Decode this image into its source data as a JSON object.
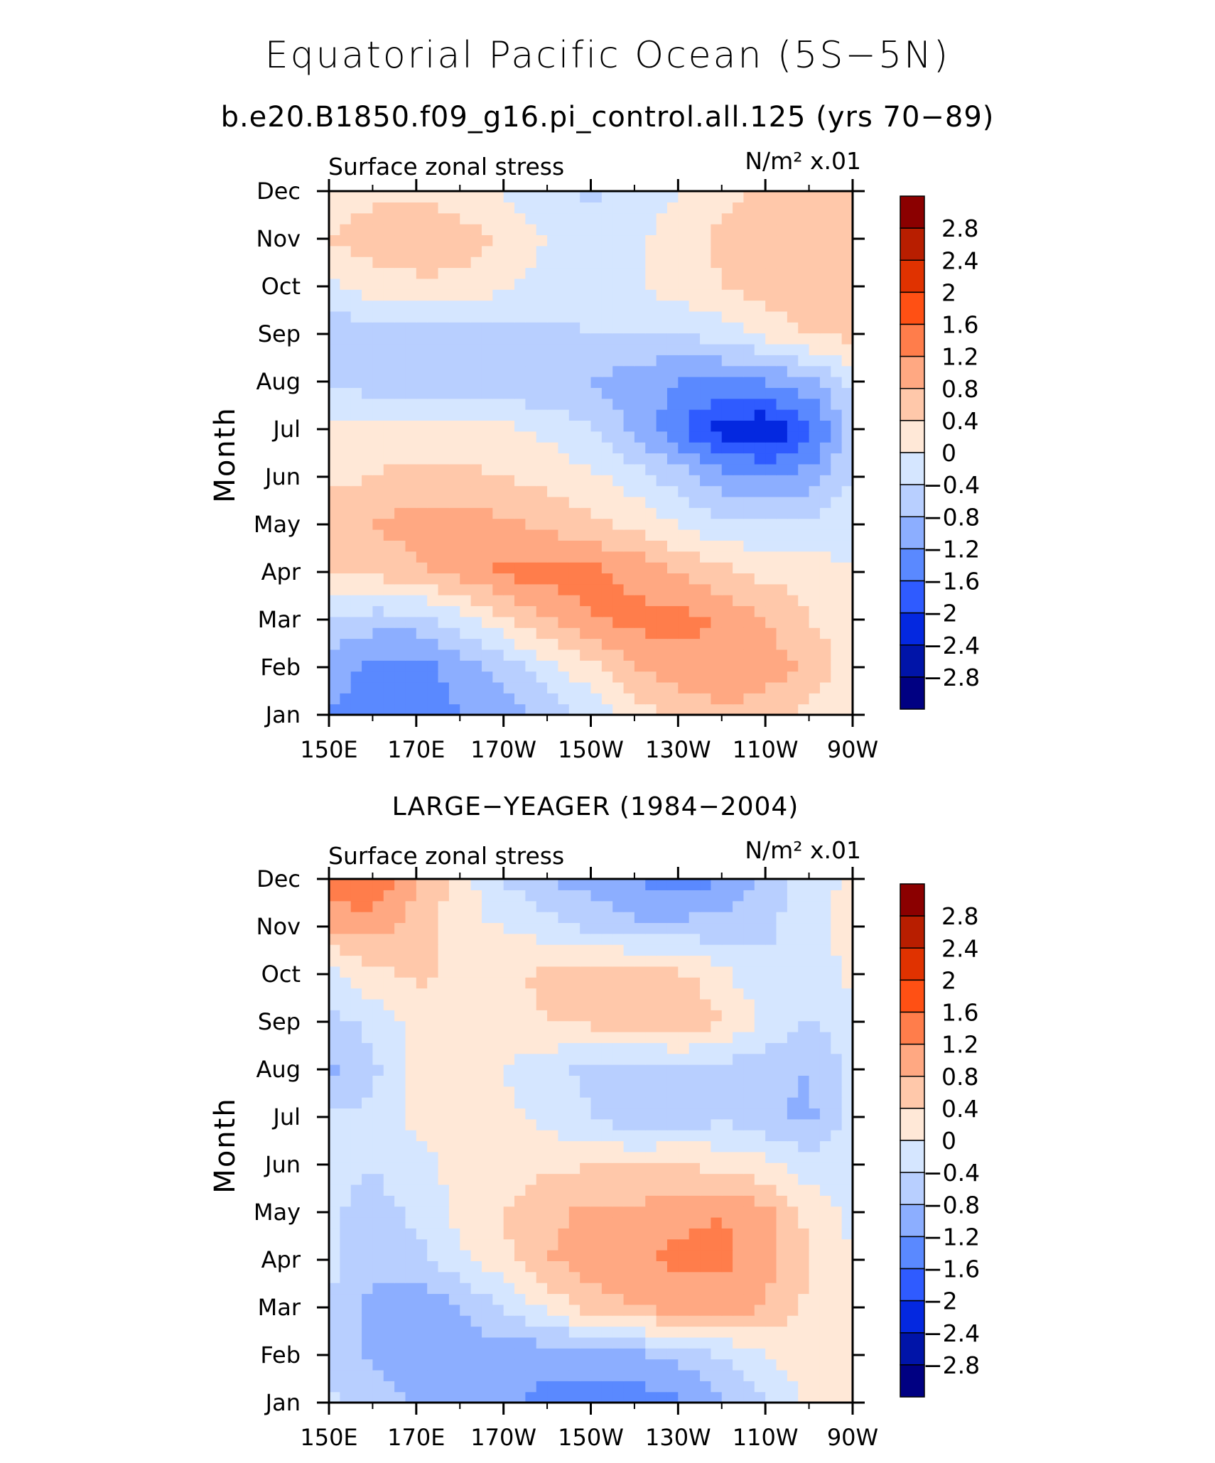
{
  "figure": {
    "title": "Equatorial Pacific Ocean (5S−5N)",
    "subtitle": "b.e20.B1850.f09_g16.pi_control.all.125 (yrs 70−89)"
  },
  "colorbar": {
    "levels": [
      "2.8",
      "2.4",
      "2",
      "1.6",
      "1.2",
      "0.8",
      "0.4",
      "0",
      "−0.4",
      "−0.8",
      "−1.2",
      "−1.6",
      "−2",
      "−2.4",
      "−2.8"
    ],
    "colors": [
      "#8b0000",
      "#b81e00",
      "#e03200",
      "#ff5014",
      "#ff7d4b",
      "#ffa882",
      "#ffc8aa",
      "#ffe8d7",
      "#d5e6ff",
      "#b8cfff",
      "#8caeff",
      "#5a89ff",
      "#2f5bff",
      "#0428e0",
      "#0014a8",
      "#000082"
    ]
  },
  "panels": [
    {
      "title": "",
      "left_label": "Surface zonal stress",
      "right_label": "N/m² x.01",
      "ylabel": "Month"
    },
    {
      "title": "LARGE−YEAGER (1984−2004)",
      "left_label": "Surface zonal stress",
      "right_label": "N/m² x.01",
      "ylabel": "Month"
    }
  ],
  "chart_data": [
    {
      "type": "heatmap",
      "title": "b.e20.B1850.f09_g16.pi_control.all.125 (yrs 70−89)",
      "variable": "Surface zonal stress",
      "units": "N/m² x.01",
      "xlabel": "",
      "ylabel": "Month",
      "x_ticks": [
        "150E",
        "170E",
        "170W",
        "150W",
        "130W",
        "110W",
        "90W"
      ],
      "y_ticks": [
        "Jan",
        "Feb",
        "Mar",
        "Apr",
        "May",
        "Jun",
        "Jul",
        "Aug",
        "Sep",
        "Oct",
        "Nov",
        "Dec"
      ],
      "levels": [
        -2.8,
        -2.4,
        -2,
        -1.6,
        -1.2,
        -0.8,
        -0.4,
        0,
        0.4,
        0.8,
        1.2,
        1.6,
        2,
        2.4,
        2.8
      ],
      "x": [
        150,
        160,
        170,
        180,
        190,
        200,
        210,
        220,
        230,
        240,
        250,
        260,
        270
      ],
      "y": [
        "Jan",
        "Feb",
        "Mar",
        "Apr",
        "May",
        "Jun",
        "Jul",
        "Aug",
        "Sep",
        "Oct",
        "Nov",
        "Dec"
      ],
      "z": [
        [
          -1.2,
          -1.4,
          -1.6,
          -1.2,
          -1.0,
          -0.6,
          -0.3,
          0.2,
          0.5,
          0.7,
          0.6,
          0.3,
          0.1
        ],
        [
          -1.0,
          -1.3,
          -1.4,
          -1.0,
          -0.6,
          -0.2,
          0.3,
          0.8,
          1.0,
          1.2,
          1.0,
          0.7,
          0.2
        ],
        [
          -0.4,
          -0.6,
          -0.6,
          -0.2,
          0.3,
          0.8,
          1.2,
          1.3,
          1.4,
          1.1,
          0.8,
          0.4,
          0.1
        ],
        [
          0.4,
          0.5,
          0.7,
          1.0,
          1.3,
          1.4,
          1.3,
          1.1,
          0.8,
          0.5,
          0.3,
          0.2,
          0.0
        ],
        [
          0.6,
          0.8,
          1.0,
          1.0,
          0.9,
          0.7,
          0.5,
          0.3,
          0.0,
          -0.3,
          -0.4,
          -0.3,
          -0.1
        ],
        [
          0.3,
          0.4,
          0.5,
          0.5,
          0.4,
          0.3,
          0.1,
          -0.2,
          -0.6,
          -1.0,
          -1.2,
          -1.0,
          -0.4
        ],
        [
          0.1,
          0.2,
          0.2,
          0.2,
          0.1,
          -0.1,
          -0.4,
          -0.9,
          -1.5,
          -2.2,
          -2.4,
          -1.8,
          -0.6
        ],
        [
          -0.5,
          -0.6,
          -0.6,
          -0.8,
          -0.8,
          -0.7,
          -0.8,
          -1.0,
          -1.2,
          -1.3,
          -1.2,
          -0.9,
          -0.3
        ],
        [
          -0.6,
          -0.7,
          -0.7,
          -0.6,
          -0.6,
          -0.5,
          -0.4,
          -0.4,
          -0.4,
          -0.2,
          0.1,
          0.4,
          0.5
        ],
        [
          -0.1,
          0.2,
          0.3,
          0.3,
          0.1,
          -0.2,
          -0.3,
          -0.1,
          0.2,
          0.4,
          0.6,
          0.7,
          0.6
        ],
        [
          0.4,
          0.6,
          0.7,
          0.6,
          0.3,
          0.0,
          -0.2,
          -0.1,
          0.2,
          0.5,
          0.7,
          0.7,
          0.5
        ],
        [
          0.2,
          0.3,
          0.3,
          0.2,
          0.0,
          -0.3,
          -0.5,
          -0.3,
          0.0,
          0.3,
          0.5,
          0.5,
          0.4
        ]
      ]
    },
    {
      "type": "heatmap",
      "title": "LARGE−YEAGER (1984−2004)",
      "variable": "Surface zonal stress",
      "units": "N/m² x.01",
      "xlabel": "",
      "ylabel": "Month",
      "x_ticks": [
        "150E",
        "170E",
        "170W",
        "150W",
        "130W",
        "110W",
        "90W"
      ],
      "y_ticks": [
        "Jan",
        "Feb",
        "Mar",
        "Apr",
        "May",
        "Jun",
        "Jul",
        "Aug",
        "Sep",
        "Oct",
        "Nov",
        "Dec"
      ],
      "levels": [
        -2.8,
        -2.4,
        -2,
        -1.6,
        -1.2,
        -0.8,
        -0.4,
        0,
        0.4,
        0.8,
        1.2,
        1.6,
        2,
        2.4,
        2.8
      ],
      "x": [
        150,
        160,
        170,
        180,
        190,
        200,
        210,
        220,
        230,
        240,
        250,
        260,
        270
      ],
      "y": [
        "Jan",
        "Feb",
        "Mar",
        "Apr",
        "May",
        "Jun",
        "Jul",
        "Aug",
        "Sep",
        "Oct",
        "Nov",
        "Dec"
      ],
      "z": [
        [
          -0.3,
          -0.6,
          -0.8,
          -1.0,
          -1.1,
          -1.3,
          -1.4,
          -1.4,
          -1.3,
          -0.9,
          -0.5,
          0.1,
          0.2
        ],
        [
          -0.5,
          -0.9,
          -1.1,
          -1.0,
          -1.0,
          -1.1,
          -1.0,
          -0.9,
          -0.7,
          -0.4,
          0.0,
          0.2,
          0.1
        ],
        [
          -0.4,
          -0.9,
          -1.1,
          -0.8,
          -0.4,
          0.1,
          0.6,
          0.8,
          1.0,
          1.0,
          0.8,
          0.3,
          0.1
        ],
        [
          -0.3,
          -0.7,
          -0.6,
          -0.1,
          0.3,
          0.8,
          1.0,
          1.1,
          1.3,
          1.3,
          0.9,
          0.4,
          0.0
        ],
        [
          -0.3,
          -0.6,
          -0.3,
          0.1,
          0.4,
          0.7,
          0.9,
          0.9,
          1.1,
          1.2,
          0.9,
          0.3,
          -0.1
        ],
        [
          -0.2,
          -0.4,
          -0.1,
          0.1,
          0.2,
          0.3,
          0.4,
          0.4,
          0.4,
          0.3,
          0.1,
          -0.2,
          -0.2
        ],
        [
          -0.3,
          -0.3,
          0.1,
          0.1,
          0.1,
          -0.1,
          -0.4,
          -0.7,
          -0.6,
          -0.5,
          -0.7,
          -0.9,
          -0.3
        ],
        [
          -0.9,
          -0.5,
          0.1,
          0.2,
          0.0,
          -0.3,
          -0.5,
          -0.7,
          -0.6,
          -0.5,
          -0.7,
          -0.8,
          -0.3
        ],
        [
          -0.5,
          -0.3,
          0.1,
          0.2,
          0.3,
          0.4,
          0.5,
          0.7,
          0.8,
          0.4,
          -0.1,
          -0.4,
          -0.2
        ],
        [
          -0.2,
          0.3,
          0.5,
          0.3,
          0.3,
          0.5,
          0.6,
          0.7,
          0.5,
          0.1,
          -0.3,
          -0.4,
          0.2
        ],
        [
          0.9,
          1.0,
          0.6,
          0.1,
          0.0,
          -0.2,
          -0.5,
          -0.7,
          -0.7,
          -0.6,
          -0.5,
          -0.1,
          0.1
        ],
        [
          1.4,
          1.6,
          0.9,
          0.2,
          -0.4,
          -0.8,
          -1.0,
          -1.2,
          -1.4,
          -1.2,
          -0.7,
          -0.2,
          0.1
        ]
      ]
    }
  ]
}
